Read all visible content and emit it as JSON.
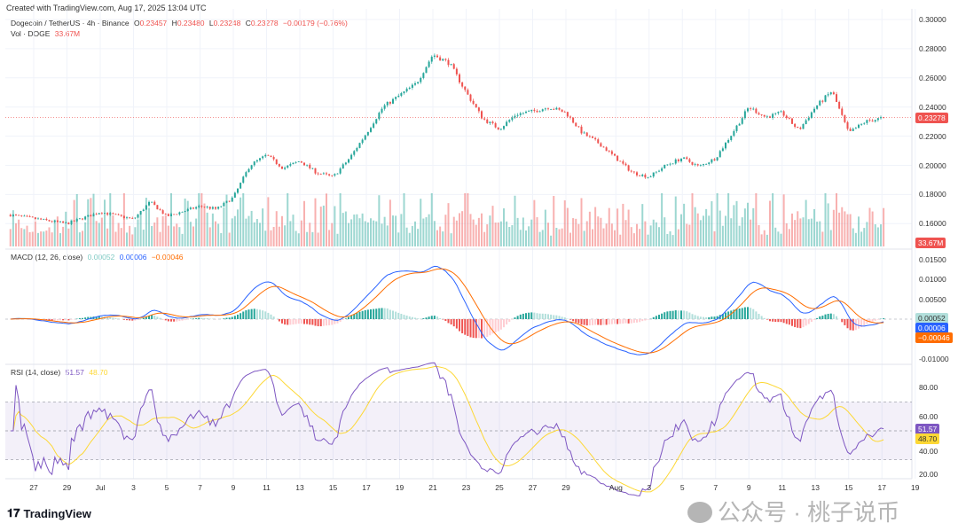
{
  "header": {
    "created": "Created with TradingView.com, Aug 17, 2025 13:04 UTC",
    "symbol": "Dogecoin / TetherUS · 4h · Binance",
    "o_label": "O",
    "o": "0.23457",
    "h_label": "H",
    "h": "0.23480",
    "l_label": "L",
    "l": "0.23248",
    "c_label": "C",
    "c": "0.23278",
    "change": "−0.00179 (−0.76%)",
    "vol_label": "Vol · DOGE",
    "vol": "33.67M"
  },
  "macd": {
    "label": "MACD (12, 26, close)",
    "hist": "0.00052",
    "macd": "0.00006",
    "signal": "−0.00046"
  },
  "rsi": {
    "label": "RSI (14, close)",
    "rsi": "51.57",
    "ma": "48.70"
  },
  "colors": {
    "up": "#26a69a",
    "down": "#ef5350",
    "macd": "#2962ff",
    "signal": "#ff6d00",
    "rsi": "#7e57c2",
    "rsi_ma": "#fdd835"
  },
  "brand": "TradingView",
  "watermark": "公众号 · 桃子说币",
  "chart_data": {
    "type": "candlestick",
    "title": "Dogecoin / TetherUS · 4h · Binance",
    "price_axis": {
      "range": [
        0.15,
        0.3
      ],
      "ticks": [
        "0.30000",
        "0.28000",
        "0.26000",
        "0.24000",
        "0.22000",
        "0.20000",
        "0.18000",
        "0.16000"
      ]
    },
    "last_price": "0.23278",
    "last_volume": "33.67M",
    "macd_axis": {
      "ticks": [
        "0.01500",
        "0.01000",
        "0.00500",
        "-0.01000"
      ]
    },
    "rsi_axis": {
      "ticks": [
        "80.00",
        "60.00",
        "40.00",
        "20.00"
      ],
      "band": [
        30,
        70
      ]
    },
    "x_labels": [
      "27",
      "29",
      "Jul",
      "3",
      "5",
      "7",
      "9",
      "11",
      "13",
      "15",
      "17",
      "19",
      "21",
      "23",
      "25",
      "27",
      "29",
      "Aug",
      "3",
      "5",
      "7",
      "9",
      "11",
      "13",
      "15",
      "17",
      "19"
    ],
    "x_label_days": [
      0,
      2,
      4,
      6,
      8,
      10,
      12,
      14,
      16,
      18,
      20,
      22,
      24,
      26,
      28,
      30,
      32,
      35,
      37,
      39,
      41,
      43,
      45,
      47,
      49,
      51,
      53
    ],
    "close_keypoints_day": [
      -1.4,
      2,
      4,
      6,
      7,
      8,
      10,
      11,
      12,
      13,
      14,
      15,
      16,
      17,
      18,
      19,
      20,
      21,
      22,
      23,
      24,
      25,
      26,
      27,
      28,
      29,
      30,
      31,
      32,
      33,
      34,
      35,
      36,
      37,
      38,
      39,
      40,
      41,
      42,
      43,
      44,
      45,
      46,
      47,
      48,
      49,
      50,
      51.2
    ],
    "close_keypoints": [
      0.166,
      0.16,
      0.168,
      0.163,
      0.175,
      0.165,
      0.172,
      0.17,
      0.178,
      0.2,
      0.207,
      0.198,
      0.203,
      0.195,
      0.192,
      0.205,
      0.222,
      0.24,
      0.248,
      0.256,
      0.276,
      0.27,
      0.25,
      0.232,
      0.225,
      0.235,
      0.237,
      0.24,
      0.236,
      0.222,
      0.215,
      0.205,
      0.195,
      0.192,
      0.2,
      0.205,
      0.199,
      0.205,
      0.222,
      0.24,
      0.233,
      0.236,
      0.224,
      0.24,
      0.251,
      0.222,
      0.23,
      0.2328
    ]
  }
}
